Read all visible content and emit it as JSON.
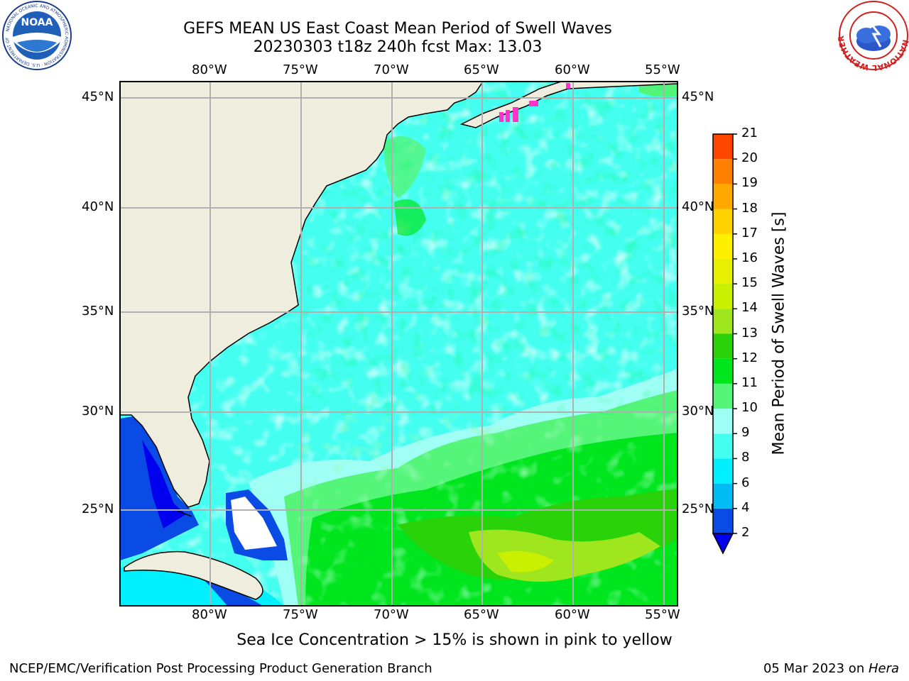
{
  "title": {
    "line1": "GEFS MEAN US East Coast Mean Period of Swell Waves",
    "line2": "20230303 t18z 240h fcst   Max: 13.03"
  },
  "logos": {
    "left": "NOAA",
    "left_ring": "NATIONAL OCEANIC AND ATMOSPHERIC ADMINISTRATION · U.S. DEPARTMENT OF COMMERCE",
    "right_ring": "NATIONAL WEATHER SERVICE"
  },
  "map": {
    "lon_labels": [
      "80°W",
      "75°W",
      "70°W",
      "65°W",
      "60°W",
      "55°W"
    ],
    "lat_labels": [
      "45°N",
      "40°N",
      "35°N",
      "30°N",
      "25°N"
    ],
    "lon_range": [
      -85,
      -54
    ],
    "lat_range": [
      20.5,
      45.8
    ],
    "grid": true,
    "colors": {
      "land": "#efeede",
      "coast": "#000000",
      "grid": "#b0b0b0"
    }
  },
  "colorbar": {
    "label": "Mean Period of Swell Waves [s]",
    "ticks": [
      "2",
      "4",
      "6",
      "8",
      "9",
      "10",
      "11",
      "12",
      "13",
      "14",
      "15",
      "16",
      "17",
      "18",
      "19",
      "20",
      "21"
    ],
    "colors": [
      "#0a4be6",
      "#00bcf5",
      "#00f0ff",
      "#44fff0",
      "#a0fff5",
      "#55f57a",
      "#00e61e",
      "#2ad20a",
      "#9fe61e",
      "#c8f000",
      "#e6f000",
      "#fff000",
      "#ffd200",
      "#ffa800",
      "#ff8000",
      "#ff4600",
      "#ff1400",
      "#ff0000"
    ],
    "under_color": "#0000ee"
  },
  "footer": {
    "ice_note": "Sea Ice Concentration > 15% is shown in pink to yellow",
    "left": "NCEP/EMC/Verification Post Processing Product Generation Branch",
    "date": "05 Mar 2023 on ",
    "host": "Hera"
  }
}
